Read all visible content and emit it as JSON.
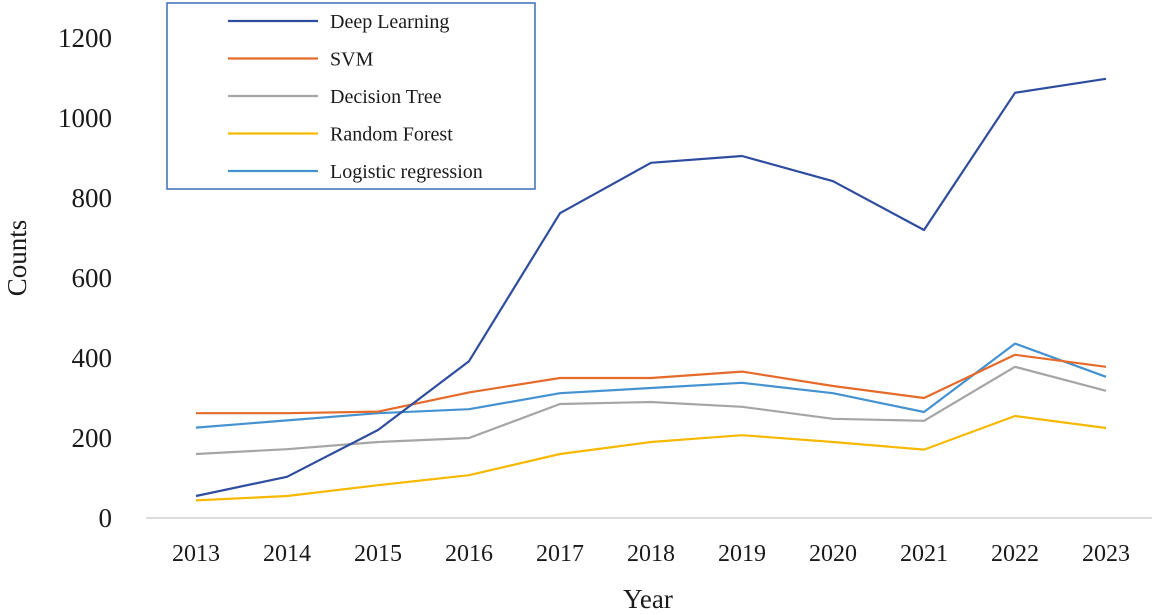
{
  "chart_data": {
    "type": "line",
    "title": "",
    "xlabel": "Year",
    "ylabel": "Counts",
    "ylim": [
      0,
      1200
    ],
    "yticks": [
      "0",
      "200",
      "400",
      "600",
      "800",
      "1000",
      "1200"
    ],
    "categories": [
      "2013",
      "2014",
      "2015",
      "2016",
      "2017",
      "2018",
      "2019",
      "2020",
      "2021",
      "2022",
      "2023"
    ],
    "grid": false,
    "legend_position": "top-left",
    "series": [
      {
        "name": "Deep Learning",
        "color": "#2f4d9e",
        "values": [
          55,
          103,
          220,
          392,
          762,
          888,
          905,
          842,
          720,
          1063,
          1098
        ]
      },
      {
        "name": "SVM",
        "color": "#e46b2a",
        "values": [
          262,
          262,
          266,
          314,
          350,
          350,
          366,
          330,
          300,
          408,
          378
        ]
      },
      {
        "name": "Decision Tree",
        "color": "#a5a5a5",
        "values": [
          160,
          172,
          190,
          200,
          285,
          290,
          278,
          248,
          243,
          378,
          318
        ]
      },
      {
        "name": "Random Forest",
        "color": "#f6b900",
        "values": [
          44,
          55,
          82,
          107,
          160,
          190,
          207,
          190,
          171,
          255,
          225
        ]
      },
      {
        "name": "Logistic regression",
        "color": "#4592d0",
        "values": [
          226,
          244,
          262,
          272,
          312,
          325,
          338,
          312,
          265,
          436,
          353
        ]
      }
    ]
  }
}
